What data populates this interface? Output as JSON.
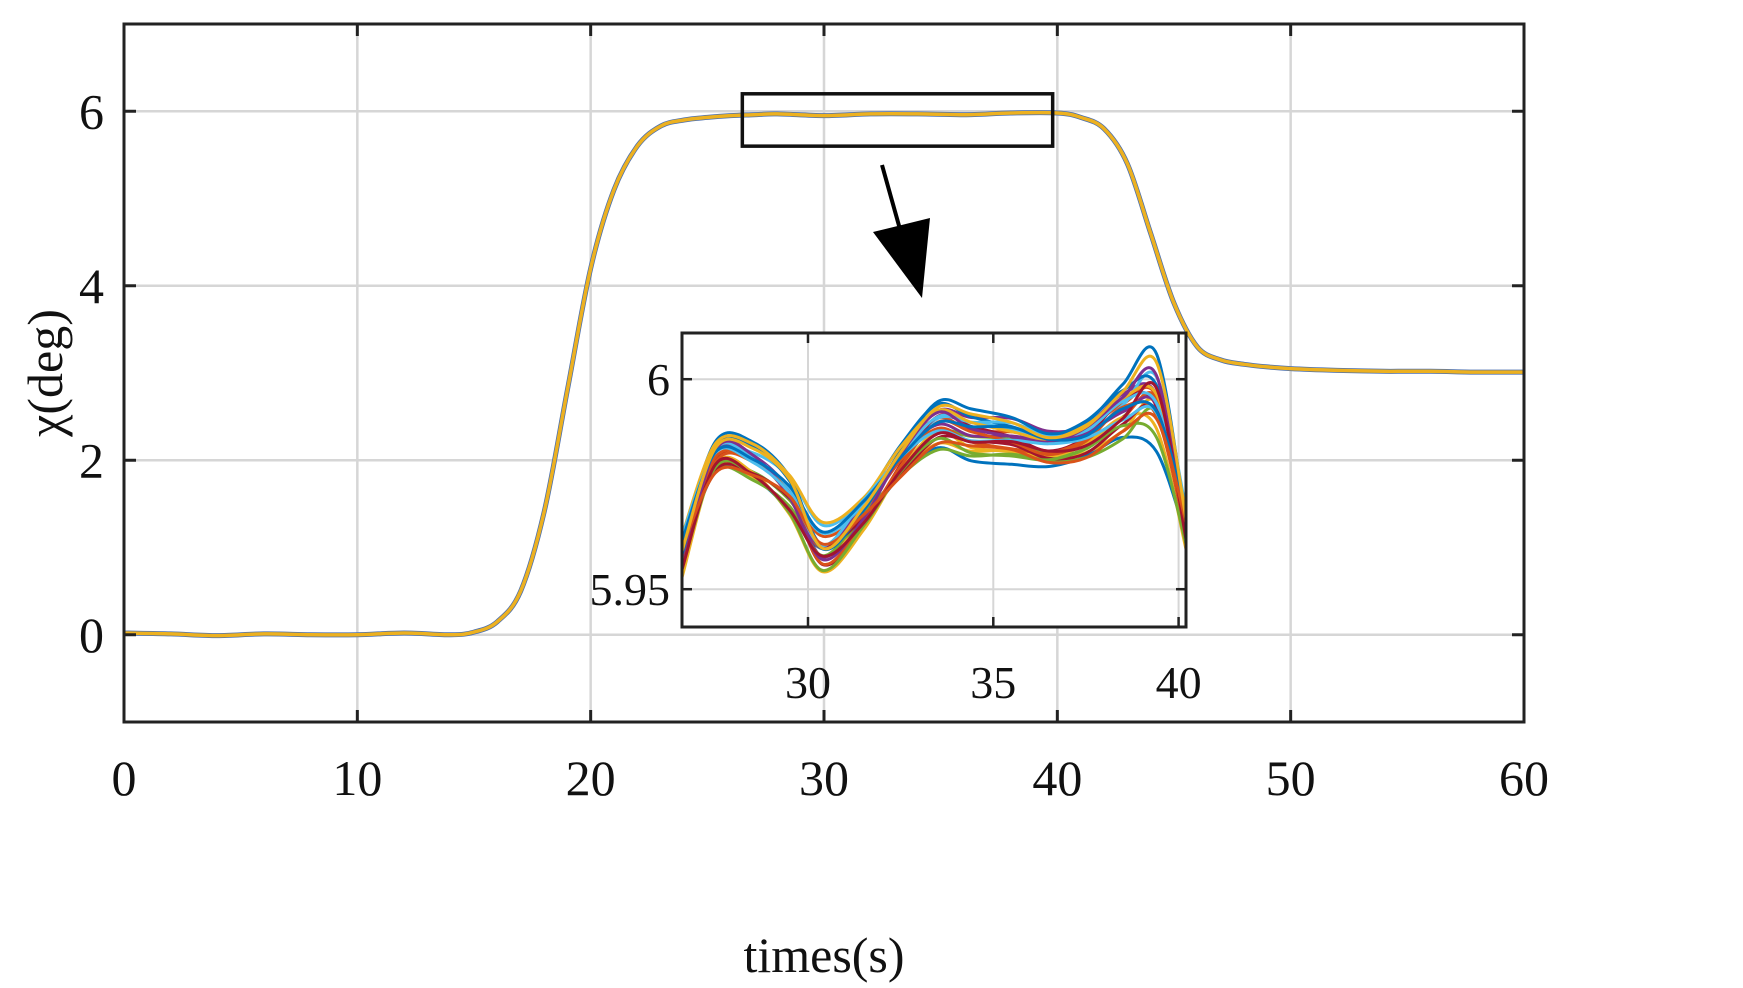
{
  "chart_data": {
    "type": "line",
    "xlabel": "times(s)",
    "ylabel": "χ(deg)",
    "xlim": [
      0,
      60
    ],
    "ylim": [
      -1,
      7
    ],
    "xticks": [
      "0",
      "10",
      "20",
      "30",
      "40",
      "50",
      "60"
    ],
    "yticks": [
      "0",
      "2",
      "4",
      "6"
    ],
    "grid": true,
    "main_series": {
      "name": "chi",
      "color": "#EDB120",
      "x": [
        0,
        2,
        4,
        6,
        8,
        10,
        12,
        14,
        15,
        16,
        17,
        18,
        19,
        20,
        21,
        22,
        23,
        24,
        25,
        26,
        27,
        28,
        30,
        32,
        34,
        36,
        38,
        40,
        41,
        42,
        43,
        44,
        45,
        46,
        47,
        48,
        49,
        50,
        52,
        54,
        56,
        58,
        60
      ],
      "y": [
        0.02,
        0.01,
        -0.01,
        0.01,
        0.0,
        0.0,
        0.02,
        0.0,
        0.03,
        0.15,
        0.5,
        1.4,
        2.8,
        4.2,
        5.1,
        5.6,
        5.83,
        5.9,
        5.93,
        5.95,
        5.96,
        5.97,
        5.95,
        5.97,
        5.97,
        5.96,
        5.98,
        5.98,
        5.93,
        5.8,
        5.4,
        4.6,
        3.8,
        3.3,
        3.15,
        3.1,
        3.07,
        3.05,
        3.03,
        3.02,
        3.02,
        3.01,
        3.01
      ]
    },
    "zoom_box": {
      "x": [
        26.5,
        39.8
      ],
      "y": [
        5.6,
        6.2
      ]
    },
    "inset": {
      "xlim": [
        26.6,
        40.2
      ],
      "ylim": [
        5.941,
        6.011
      ],
      "xticks": [
        "30",
        "35",
        "40"
      ],
      "yticks": [
        "6",
        "5.95"
      ],
      "series_colors": [
        "#0072BD",
        "#D95319",
        "#EDB120",
        "#7E2F8E",
        "#77AC30",
        "#4DBEEE",
        "#A2142F",
        "#0072BD",
        "#D95319",
        "#EDB120",
        "#7E2F8E",
        "#77AC30",
        "#4DBEEE",
        "#A2142F",
        "#0072BD",
        "#D95319",
        "#EDB120",
        "#7E2F8E",
        "#77AC30",
        "#4DBEEE",
        "#A2142F",
        "#0072BD",
        "#D95319",
        "#EDB120"
      ],
      "base_x": [
        26.6,
        27.5,
        28.5,
        29.5,
        30.4,
        31.5,
        32.5,
        33.5,
        34.4,
        35.5,
        36.5,
        37.5,
        38.5,
        39.4,
        40.2
      ],
      "base_y": [
        5.96,
        5.981,
        5.98,
        5.973,
        5.963,
        5.969,
        5.98,
        5.988,
        5.986,
        5.985,
        5.983,
        5.985,
        5.991,
        5.993,
        5.966
      ]
    }
  }
}
